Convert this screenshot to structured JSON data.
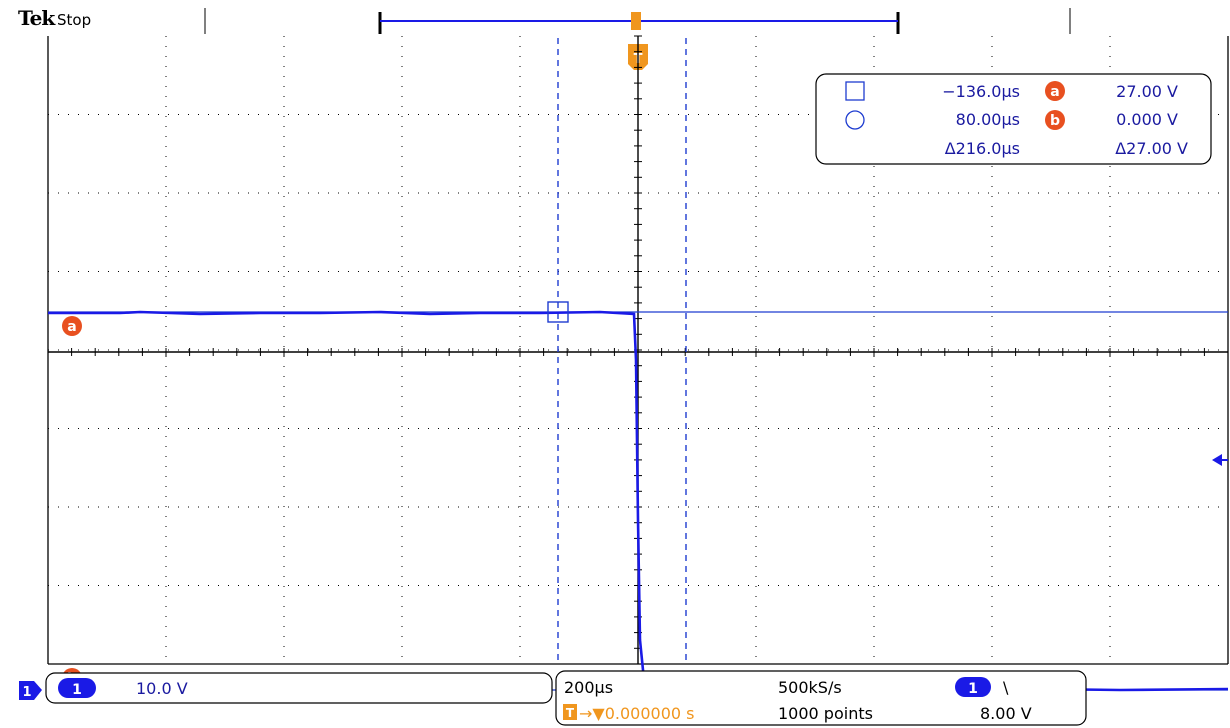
{
  "header": {
    "brand": "Tek",
    "acquisition_state": "Stop"
  },
  "trigger_marker": "T",
  "channel_marker": "1",
  "cursor_readout": {
    "cursor_a_time": "−136.0µs",
    "cursor_b_time": "80.00µs",
    "delta_time": "Δ216.0µs",
    "cursor_a_label": "a",
    "cursor_b_label": "b",
    "cursor_a_value": "27.00 V",
    "cursor_b_value": "0.000 V",
    "delta_value": "Δ27.00 V"
  },
  "waveform_labels": {
    "a": "a",
    "b": "b"
  },
  "channel_box": {
    "channel": "1",
    "scale": "10.0 V"
  },
  "timebase_box": {
    "time_per_div": "200µs",
    "trigger_position": "→▼0.000000 s",
    "trigger_icon": "T",
    "sample_rate": "500kS/s",
    "record_length": "1000 points",
    "trigger_channel": "1",
    "trigger_slope": "\\",
    "trigger_level": "8.00 V"
  },
  "colors": {
    "trace": "#1a1ae6",
    "cursor": "#1e3cd0",
    "trigger": "#f0961e",
    "label_dot": "#e85020",
    "grid": "#000000"
  }
}
